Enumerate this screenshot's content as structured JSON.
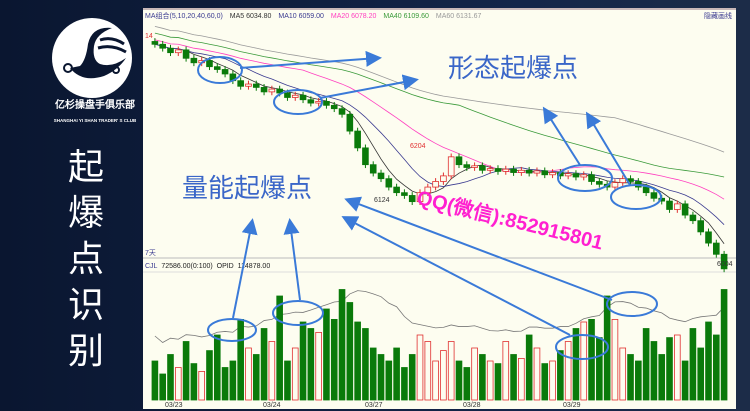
{
  "brand": {
    "name_cn": "亿杉操盘手俱乐部",
    "name_en": "SHANGHAI YI SHAN TRADER' S CLUB"
  },
  "slide_title": [
    "起",
    "爆",
    "点",
    "识",
    "别"
  ],
  "chart_header": {
    "ma_group": "MA组合(5,10,20,40,60,0)",
    "ma5": "MA5 6034.80",
    "ma10": "MA10 6059.00",
    "ma20": "MA20 6078.20",
    "ma40": "MA40 6109.60",
    "ma60": "MA60 6131.67",
    "hide_button": "隐藏画线"
  },
  "colors": {
    "ma5": "#333333",
    "ma10": "#3a3a90",
    "ma20": "#ff40c0",
    "ma40": "#3a9a3a",
    "ma60": "#999999",
    "up": "#e03030",
    "down": "#0a7a0a",
    "annotation": "#3a7ad8"
  },
  "volume_header": {
    "period": "7天",
    "cjl": "CJL",
    "value": "72586.00(0:100)",
    "opid_label": "OPID",
    "opid_value": "114878.00"
  },
  "price_labels": {
    "high_left": "14",
    "peak": "6204",
    "low": "6124",
    "last": "6004"
  },
  "dates": [
    "03/23",
    "03/24",
    "03/27",
    "03/28",
    "03/29"
  ],
  "annotations": {
    "pattern": "形态起爆点",
    "volume": "量能起爆点",
    "contact": "QQ(微信):852915801"
  },
  "chart_data": {
    "type": "candlestick",
    "closes": [
      6405,
      6398,
      6390,
      6395,
      6380,
      6372,
      6376,
      6365,
      6360,
      6352,
      6340,
      6330,
      6334,
      6328,
      6320,
      6325,
      6318,
      6310,
      6314,
      6306,
      6300,
      6303,
      6296,
      6290,
      6280,
      6250,
      6220,
      6190,
      6175,
      6165,
      6150,
      6140,
      6135,
      6124,
      6140,
      6150,
      6160,
      6170,
      6204,
      6190,
      6185,
      6188,
      6180,
      6183,
      6178,
      6182,
      6176,
      6180,
      6175,
      6179,
      6172,
      6176,
      6170,
      6174,
      6168,
      6172,
      6160,
      6155,
      6150,
      6158,
      6165,
      6160,
      6150,
      6140,
      6130,
      6125,
      6110,
      6120,
      6100,
      6090,
      6070,
      6050,
      6030,
      6004
    ],
    "volumes": [
      30,
      20,
      35,
      25,
      45,
      28,
      22,
      38,
      50,
      25,
      30,
      62,
      40,
      35,
      55,
      45,
      80,
      30,
      40,
      60,
      55,
      52,
      70,
      62,
      85,
      75,
      60,
      55,
      40,
      35,
      30,
      40,
      25,
      35,
      50,
      45,
      30,
      38,
      45,
      30,
      25,
      40,
      35,
      30,
      28,
      45,
      35,
      32,
      50,
      40,
      28,
      30,
      38,
      45,
      55,
      60,
      62,
      48,
      80,
      62,
      40,
      35,
      30,
      55,
      45,
      35,
      48,
      50,
      30,
      55,
      40,
      60,
      50,
      85
    ]
  }
}
